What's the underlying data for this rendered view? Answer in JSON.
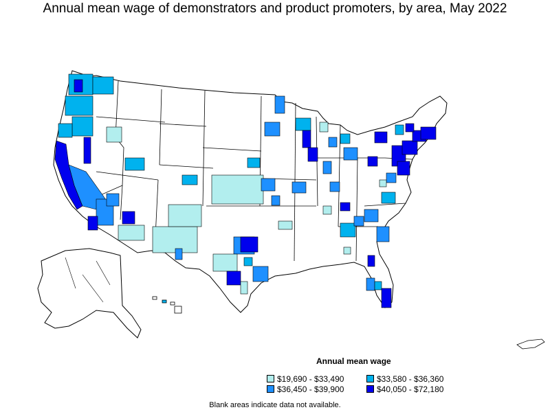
{
  "title": "Annual mean wage of demonstrators and product promoters, by area, May 2022",
  "legend": {
    "title": "Annual mean wage",
    "items": [
      {
        "label": "$19,690 - $33,490",
        "color": "#b2eeee"
      },
      {
        "label": "$33,580 - $36,360",
        "color": "#00b2ee"
      },
      {
        "label": "$36,450 - $39,900",
        "color": "#1e90ff"
      },
      {
        "label": "$40,050 - $72,180",
        "color": "#0000ee"
      }
    ]
  },
  "footnote": "Blank areas indicate data not available.",
  "colors": {
    "border": "#000000",
    "background": "#ffffff"
  }
}
